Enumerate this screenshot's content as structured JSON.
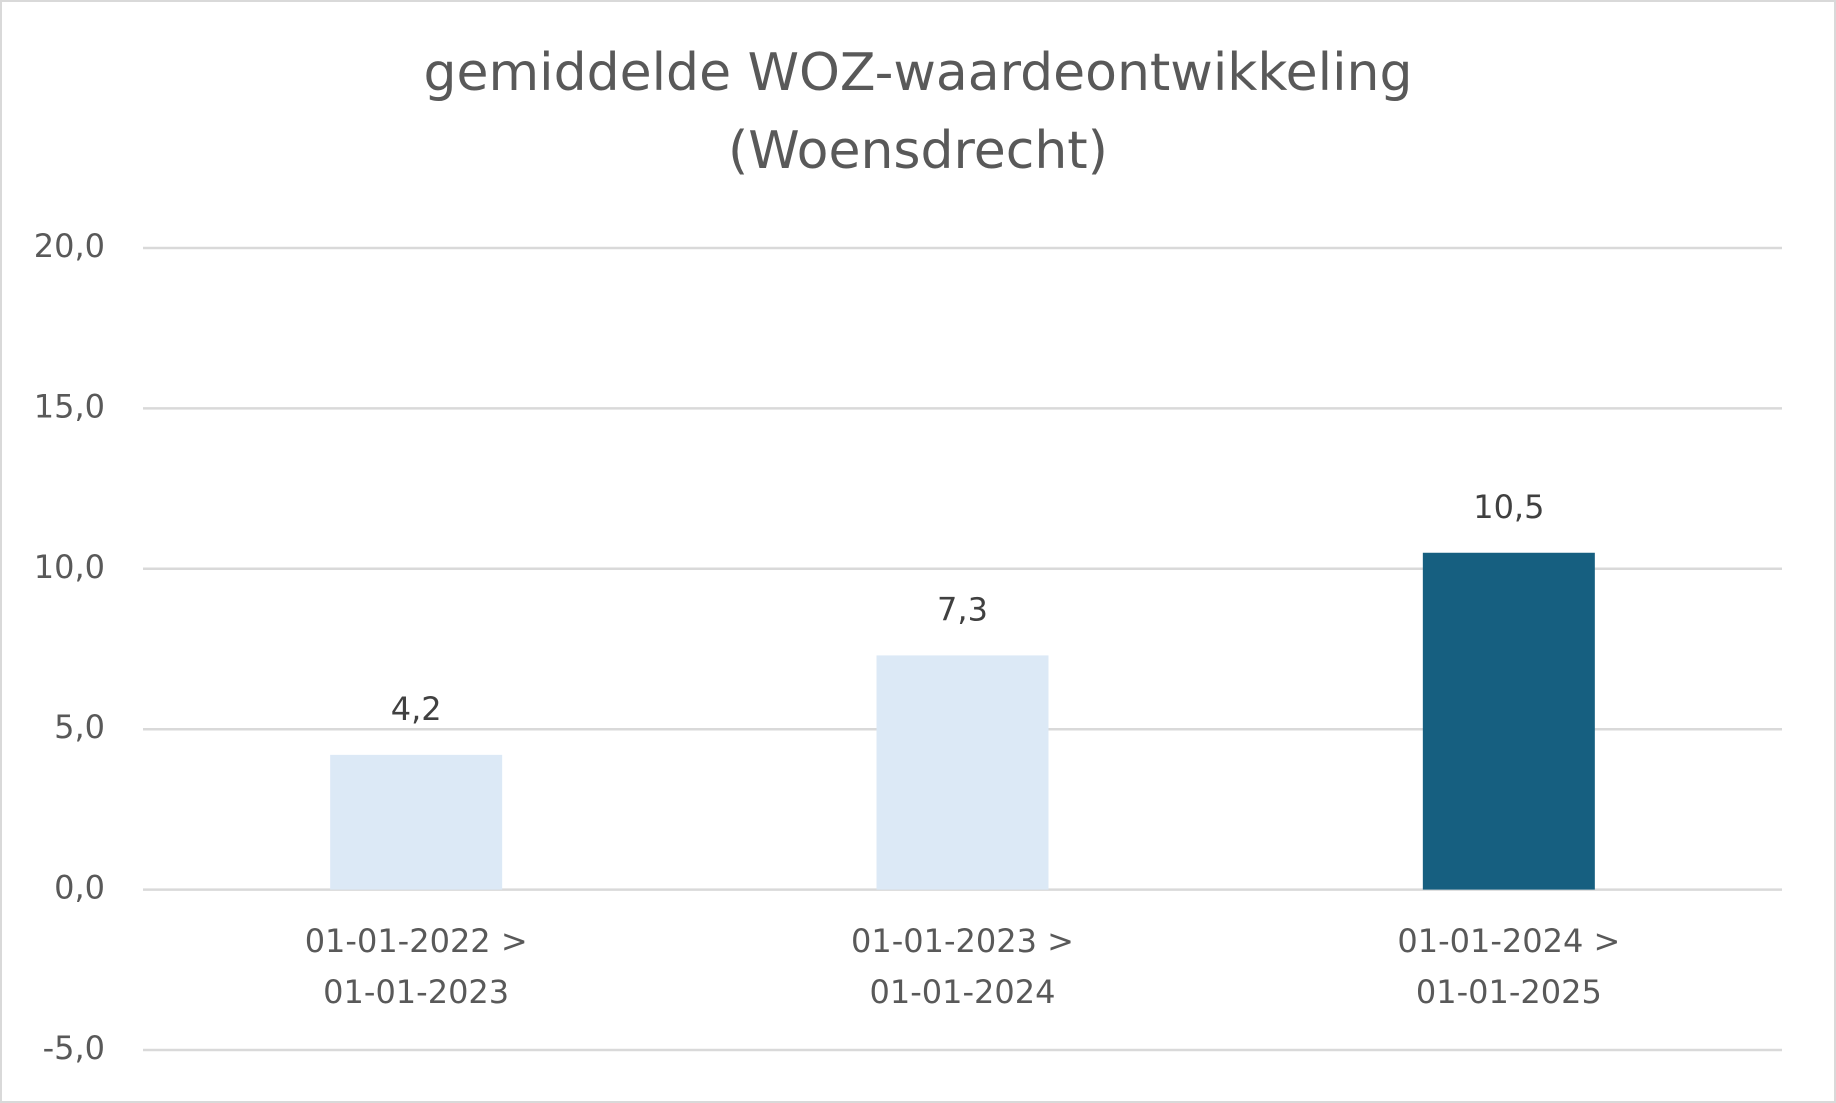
{
  "chart_data": {
    "type": "bar",
    "title": [
      "gemiddelde WOZ-waardeontwikkeling",
      "(Woensdrecht)"
    ],
    "categories": [
      [
        "01-01-2022 >",
        "01-01-2023"
      ],
      [
        "01-01-2023 >",
        "01-01-2024"
      ],
      [
        "01-01-2024 >",
        "01-01-2025"
      ]
    ],
    "values": [
      4.2,
      7.3,
      10.5
    ],
    "value_labels": [
      "4,2",
      "7,3",
      "10,5"
    ],
    "colors": [
      "#dce9f6",
      "#dce9f6",
      "#165f80"
    ],
    "ylim": [
      -5,
      20
    ],
    "yticks": [
      {
        "value": -5,
        "label": "-5,0"
      },
      {
        "value": 0,
        "label": "0,0"
      },
      {
        "value": 5,
        "label": "5,0"
      },
      {
        "value": 10,
        "label": "10,0"
      },
      {
        "value": 15,
        "label": "15,0"
      },
      {
        "value": 20,
        "label": "20,0"
      }
    ],
    "grid": true
  }
}
